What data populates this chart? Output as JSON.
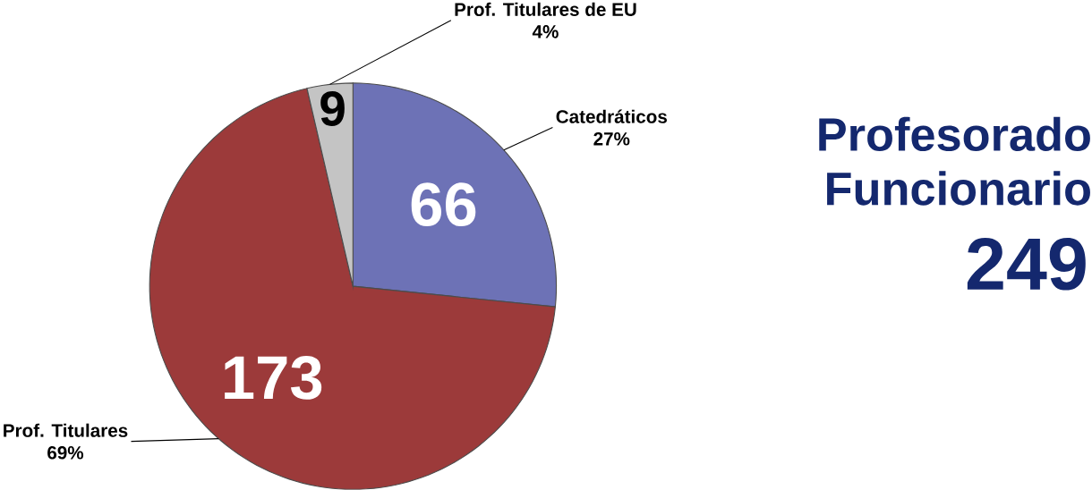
{
  "chart_data": {
    "type": "pie",
    "title": "Profesorado Funcionario",
    "subtitle": "249",
    "categories": [
      "Catedráticos",
      "Prof. Titulares",
      "Prof. Titulares de EU"
    ],
    "values": [
      66,
      173,
      9
    ],
    "colors": [
      "#6d72b6",
      "#9c3a3a",
      "#c4c4c4"
    ],
    "data_labels": true,
    "annotations": [
      "27%",
      "69%",
      "4%"
    ]
  }
}
